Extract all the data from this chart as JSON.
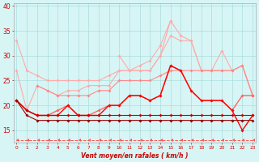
{
  "x": [
    0,
    1,
    2,
    3,
    4,
    5,
    6,
    7,
    8,
    9,
    10,
    11,
    12,
    13,
    14,
    15,
    16,
    17,
    18,
    19,
    20,
    21,
    22,
    23
  ],
  "series": [
    {
      "color": "#ffaaaa",
      "values": [
        33,
        27,
        26,
        25,
        25,
        25,
        25,
        25,
        25,
        26,
        27,
        27,
        28,
        29,
        32,
        37,
        34,
        33,
        27,
        27,
        27,
        27,
        28,
        22
      ],
      "marker": "D",
      "markersize": 2.0,
      "lw": 0.8
    },
    {
      "color": "#ffaaaa",
      "values": [
        27,
        19,
        24,
        23,
        22,
        23,
        23,
        24,
        24,
        24,
        27,
        27,
        27,
        27,
        30,
        34,
        33,
        33,
        27,
        27,
        31,
        27,
        28,
        22
      ],
      "marker": "D",
      "markersize": 2.0,
      "lw": 0.8
    },
    {
      "color": "#ffaaaa",
      "values": [
        null,
        null,
        null,
        null,
        null,
        null,
        null,
        null,
        null,
        null,
        30,
        27,
        27,
        27,
        30,
        37,
        null,
        null,
        null,
        null,
        null,
        null,
        null,
        null
      ],
      "marker": "D",
      "markersize": 2.0,
      "lw": 0.8
    },
    {
      "color": "#ff8888",
      "values": [
        null,
        null,
        24,
        23,
        22,
        22,
        22,
        22,
        23,
        23,
        25,
        25,
        25,
        25,
        26,
        27,
        27,
        27,
        27,
        27,
        27,
        27,
        28,
        22
      ],
      "marker": "D",
      "markersize": 2.0,
      "lw": 0.8
    },
    {
      "color": "#ff6666",
      "values": [
        21,
        19,
        18,
        18,
        19,
        20,
        18,
        18,
        19,
        20,
        20,
        22,
        22,
        21,
        22,
        28,
        27,
        23,
        21,
        21,
        21,
        19,
        22,
        22
      ],
      "marker": "D",
      "markersize": 2.0,
      "lw": 1.0
    },
    {
      "color": "#ff0000",
      "values": [
        21,
        19,
        18,
        18,
        18,
        20,
        18,
        18,
        18,
        20,
        20,
        22,
        22,
        21,
        22,
        28,
        27,
        23,
        21,
        21,
        21,
        19,
        15,
        18
      ],
      "marker": "D",
      "markersize": 2.0,
      "lw": 1.0
    },
    {
      "color": "#cc0000",
      "values": [
        21,
        19,
        18,
        18,
        18,
        18,
        18,
        18,
        18,
        18,
        18,
        18,
        18,
        18,
        18,
        18,
        18,
        18,
        18,
        18,
        18,
        18,
        18,
        18
      ],
      "marker": "D",
      "markersize": 2.0,
      "lw": 0.8
    },
    {
      "color": "#990000",
      "values": [
        21,
        18,
        17,
        17,
        17,
        17,
        17,
        17,
        17,
        17,
        17,
        17,
        17,
        17,
        17,
        17,
        17,
        17,
        17,
        17,
        17,
        17,
        17,
        17
      ],
      "marker": "D",
      "markersize": 2.0,
      "lw": 0.8
    },
    {
      "color": "#ff5555",
      "dashed": true,
      "values": [
        13,
        13,
        13,
        13,
        13,
        13,
        13,
        13,
        13,
        13,
        13,
        13,
        13,
        13,
        13,
        13,
        13,
        13,
        13,
        13,
        13,
        13,
        13,
        13
      ],
      "marker": 4,
      "markersize": 3.0,
      "lw": 0.7
    }
  ],
  "xlim": [
    -0.3,
    23.3
  ],
  "ylim": [
    12.5,
    40.5
  ],
  "yticks": [
    15,
    20,
    25,
    30,
    35,
    40
  ],
  "xtick_labels": [
    "0",
    "1",
    "2",
    "3",
    "4",
    "5",
    "6",
    "7",
    "8",
    "9",
    "10",
    "11",
    "12",
    "13",
    "14",
    "15",
    "16",
    "17",
    "18",
    "19",
    "20",
    "21",
    "22",
    "23"
  ],
  "xlabel": "Vent moyen/en rafales ( km/h )",
  "bg_color": "#d8f5f5",
  "grid_color": "#aadddd",
  "tick_color": "#cc0000",
  "label_color": "#cc0000",
  "figsize": [
    3.2,
    2.0
  ],
  "dpi": 100
}
